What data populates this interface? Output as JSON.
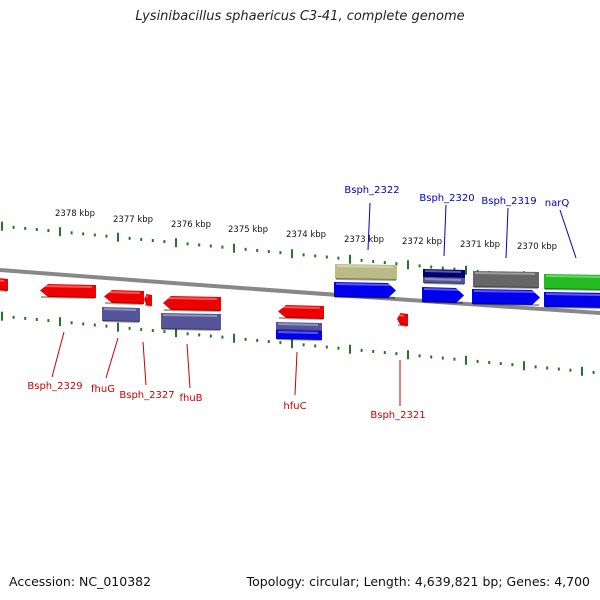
{
  "title": "Lysinibacillus sphaericus C3-41, complete genome",
  "footer": {
    "accession": "Accession: NC_010382",
    "topology": "Topology: circular; Length: 4,639,821 bp; Genes: 4,700"
  },
  "colors": {
    "red_gene": "#ee0000",
    "blue_gene": "#0000ee",
    "purple_gene": "#555599",
    "olive_gene": "#bbbb88",
    "gray_gene": "#666666",
    "green_gene": "#22bb22",
    "navy_gene": "#000077",
    "tick_green": "#227722",
    "label_red": "#cc0000",
    "label_blue": "#0000bb",
    "backbone": "#888888"
  },
  "ruler_labels": [
    "2378 kbp",
    "2377 kbp",
    "2376 kbp",
    "2375 kbp",
    "2374 kbp",
    "2373 kbp",
    "2372 kbp",
    "2371 kbp",
    "2370 kbp"
  ],
  "gene_labels_top": [
    "Bsph_2322",
    "Bsph_2320",
    "Bsph_2319",
    "narQ"
  ],
  "gene_labels_bottom": [
    "Bsph_2329",
    "fhuG",
    "Bsph_2327",
    "fhuB",
    "hfuC",
    "Bsph_2321"
  ]
}
